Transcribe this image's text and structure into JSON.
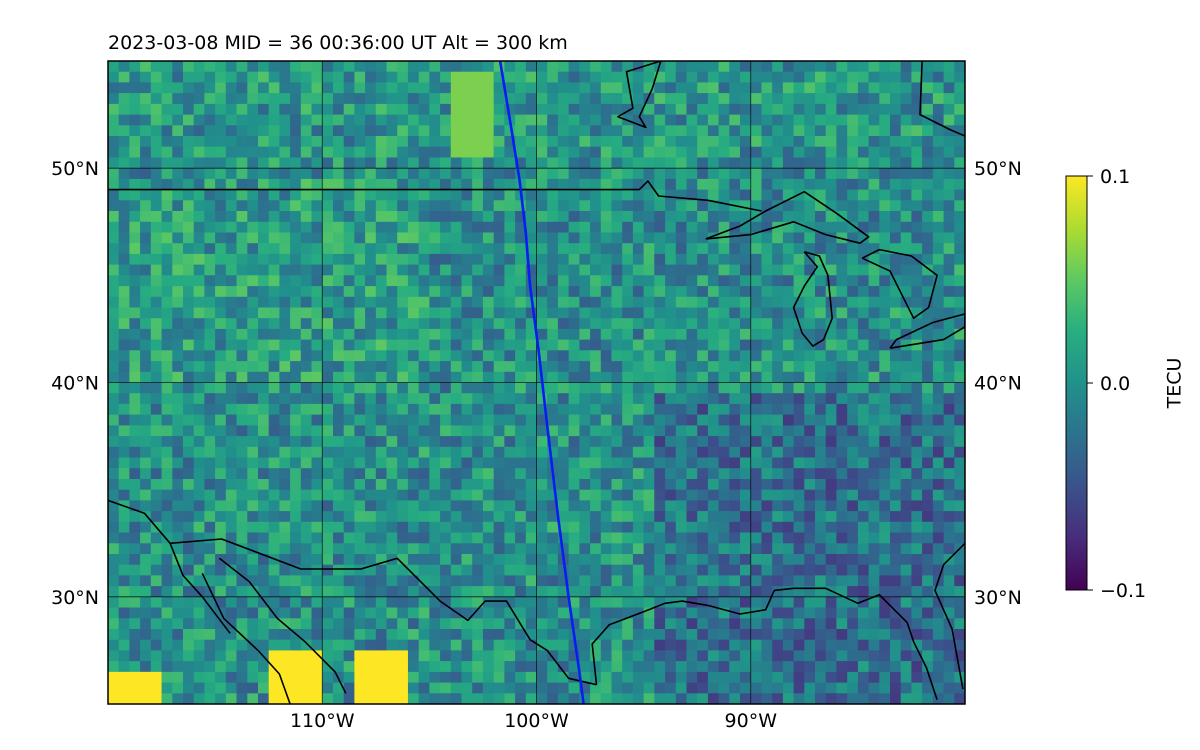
{
  "title": "2023-03-08  MID =  36    00:36:00  UT  Alt = 300 km",
  "chart_data": {
    "type": "heatmap",
    "title": "2023-03-08  MID =  36    00:36:00  UT  Alt = 300 km",
    "xlim": [
      -120,
      -80
    ],
    "ylim": [
      25,
      55
    ],
    "x_ticks": [
      {
        "value": -110,
        "label": "110°W"
      },
      {
        "value": -100,
        "label": "100°W"
      },
      {
        "value": -90,
        "label": "90°W"
      }
    ],
    "y_ticks": [
      {
        "value": 30,
        "label": "30°N"
      },
      {
        "value": 40,
        "label": "40°N"
      },
      {
        "value": 50,
        "label": "50°N"
      }
    ],
    "grid": true,
    "colormap": "viridis",
    "colorbar": {
      "label": "TECU",
      "vmin": -0.1,
      "vmax": 0.1,
      "ticks": [
        {
          "value": -0.1,
          "label": "−0.1"
        },
        {
          "value": 0.0,
          "label": "0.0"
        },
        {
          "value": 0.1,
          "label": "0.1"
        }
      ]
    },
    "track": {
      "color": "#0a1cf5",
      "points": [
        [
          -101.7,
          55.0
        ],
        [
          -101.2,
          52.0
        ],
        [
          -100.8,
          49.5
        ],
        [
          -100.5,
          47.0
        ],
        [
          -100.3,
          44.5
        ],
        [
          -99.9,
          41.5
        ],
        [
          -99.5,
          38.0
        ],
        [
          -99.0,
          33.8
        ],
        [
          -98.5,
          30.0
        ],
        [
          -98.0,
          26.5
        ],
        [
          -97.8,
          25.0
        ]
      ]
    },
    "features": [
      {
        "name": "heatmap-tile-southwest-hot",
        "lon": [
          -120,
          -117.5
        ],
        "lat": [
          25,
          26.5
        ],
        "value": 0.12
      },
      {
        "name": "heatmap-tile-mexico-hot-1",
        "lon": [
          -112.5,
          -110
        ],
        "lat": [
          25,
          27.5
        ],
        "value": 0.11
      },
      {
        "name": "heatmap-tile-mexico-hot-2",
        "lon": [
          -108.5,
          -106
        ],
        "lat": [
          25,
          27.5
        ],
        "value": 0.1
      },
      {
        "name": "heatmap-tile-canada-plume",
        "lon": [
          -104,
          -102
        ],
        "lat": [
          50.5,
          54.5
        ],
        "value": 0.06
      }
    ],
    "coastlines": {
      "us-canada-border": [
        [
          -120,
          49.0
        ],
        [
          -115,
          49.0
        ],
        [
          -110,
          49.0
        ],
        [
          -100,
          49.0
        ],
        [
          -95.2,
          49.0
        ],
        [
          -94.8,
          49.4
        ],
        [
          -94.3,
          48.7
        ],
        [
          -92,
          48.5
        ],
        [
          -89.5,
          48.0
        ]
      ],
      "lake-superior": [
        [
          -92.1,
          46.7
        ],
        [
          -90,
          46.9
        ],
        [
          -88,
          47.5
        ],
        [
          -86.5,
          46.9
        ],
        [
          -84.9,
          46.5
        ],
        [
          -84.5,
          46.8
        ],
        [
          -86,
          47.9
        ],
        [
          -87.5,
          48.9
        ],
        [
          -89.3,
          48.0
        ],
        [
          -90.5,
          47.3
        ],
        [
          -92.1,
          46.7
        ]
      ],
      "lake-michigan": [
        [
          -87.5,
          46.1
        ],
        [
          -86.8,
          45.9
        ],
        [
          -86.4,
          45.0
        ],
        [
          -86.2,
          43.0
        ],
        [
          -86.6,
          42.0
        ],
        [
          -87.1,
          41.7
        ],
        [
          -87.6,
          42.3
        ],
        [
          -88.0,
          43.5
        ],
        [
          -87.5,
          44.5
        ],
        [
          -86.9,
          45.4
        ],
        [
          -87.5,
          46.1
        ]
      ],
      "lake-huron": [
        [
          -84.8,
          45.8
        ],
        [
          -83.5,
          45.2
        ],
        [
          -82.4,
          43.0
        ],
        [
          -81.7,
          43.5
        ],
        [
          -81.3,
          45.0
        ],
        [
          -82.5,
          45.9
        ],
        [
          -84.0,
          46.2
        ],
        [
          -84.8,
          45.8
        ]
      ],
      "lake-erie-ontario": [
        [
          -83.5,
          41.6
        ],
        [
          -81.0,
          42.0
        ],
        [
          -80.0,
          42.6
        ],
        [
          -80.0,
          43.2
        ],
        [
          -81.5,
          42.8
        ],
        [
          -83.2,
          42.0
        ],
        [
          -83.5,
          41.6
        ]
      ],
      "hudson-bay-coast": [
        [
          -94.2,
          55.0
        ],
        [
          -94.6,
          53.7
        ],
        [
          -95.2,
          52.4
        ],
        [
          -94.9,
          51.9
        ],
        [
          -96.2,
          52.4
        ],
        [
          -95.5,
          52.8
        ],
        [
          -95.8,
          54.5
        ],
        [
          -94.2,
          55.0
        ]
      ],
      "james-bay": [
        [
          -82.0,
          55.0
        ],
        [
          -82.1,
          52.5
        ],
        [
          -80.7,
          51.8
        ],
        [
          -80.0,
          51.5
        ]
      ],
      "us-mexico-border": [
        [
          -117.1,
          32.5
        ],
        [
          -114.7,
          32.7
        ],
        [
          -111.0,
          31.3
        ],
        [
          -108.2,
          31.3
        ],
        [
          -106.5,
          31.8
        ],
        [
          -104.5,
          29.8
        ],
        [
          -103.2,
          28.9
        ],
        [
          -102.4,
          29.8
        ],
        [
          -101.4,
          29.8
        ],
        [
          -100.3,
          28.0
        ],
        [
          -99.5,
          27.5
        ],
        [
          -98.5,
          26.2
        ],
        [
          -97.2,
          25.9
        ]
      ],
      "gulf-coast": [
        [
          -97.2,
          25.9
        ],
        [
          -97.4,
          27.8
        ],
        [
          -96.6,
          28.7
        ],
        [
          -95.0,
          29.3
        ],
        [
          -94.0,
          29.7
        ],
        [
          -93.2,
          29.8
        ],
        [
          -92.0,
          29.6
        ],
        [
          -90.5,
          29.2
        ],
        [
          -89.3,
          29.4
        ],
        [
          -88.9,
          30.3
        ],
        [
          -88.0,
          30.4
        ],
        [
          -86.5,
          30.4
        ],
        [
          -85.0,
          29.7
        ],
        [
          -84.0,
          30.1
        ],
        [
          -82.7,
          28.8
        ],
        [
          -82.4,
          27.9
        ],
        [
          -81.8,
          26.7
        ],
        [
          -81.3,
          25.2
        ]
      ],
      "florida-atlantic": [
        [
          -80.1,
          25.7
        ],
        [
          -80.6,
          28.5
        ],
        [
          -81.4,
          30.3
        ],
        [
          -81.0,
          31.5
        ],
        [
          -80.0,
          32.5
        ]
      ],
      "baja-peninsula": [
        [
          -115.6,
          31.1
        ],
        [
          -114.6,
          29.0
        ],
        [
          -113.0,
          27.5
        ],
        [
          -112.0,
          26.4
        ],
        [
          -111.5,
          25.0
        ]
      ],
      "sonora-coast": [
        [
          -114.8,
          31.8
        ],
        [
          -113.4,
          30.7
        ],
        [
          -112.1,
          29.0
        ],
        [
          -110.8,
          27.9
        ],
        [
          -109.4,
          26.5
        ],
        [
          -108.9,
          25.5
        ]
      ],
      "pacific-baja": [
        [
          -120.0,
          34.5
        ],
        [
          -118.3,
          33.9
        ],
        [
          -117.1,
          32.5
        ],
        [
          -116.5,
          31.0
        ],
        [
          -115.6,
          30.0
        ],
        [
          -114.3,
          28.3
        ]
      ]
    }
  }
}
